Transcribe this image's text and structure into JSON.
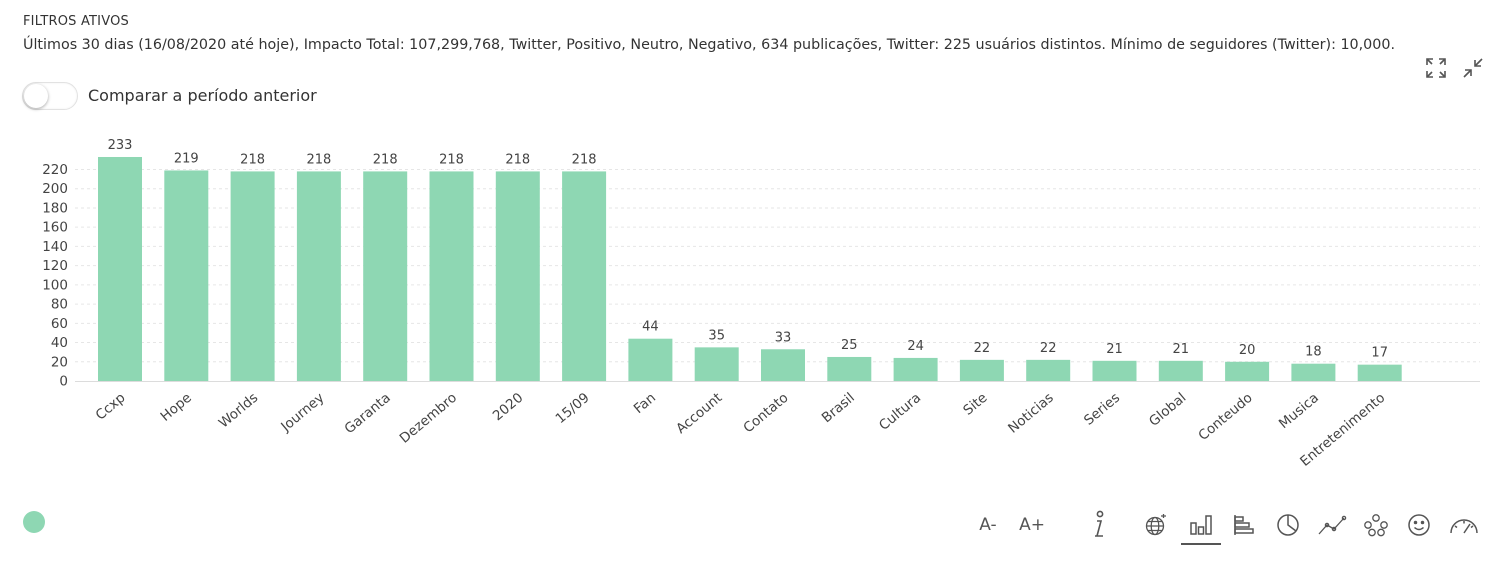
{
  "filters": {
    "title": "FILTROS ATIVOS",
    "summary": "Últimos 30 dias (16/08/2020 até hoje), Impacto Total: 107,299,768, Twitter, Positivo, Neutro, Negativo, 634 publicações, Twitter: 225 usuários distintos. Mínimo de seguidores (Twitter): 10,000."
  },
  "compare": {
    "label": "Comparar a período anterior",
    "enabled": false
  },
  "toolbar": {
    "font_decrease": "A-",
    "font_increase": "A+"
  },
  "colors": {
    "bar": "#8ed7b3",
    "grid": "#e6e6e6",
    "text": "#444444"
  },
  "icons": {
    "expand": "expand-icon",
    "collapse": "collapse-icon",
    "info": "info-icon",
    "globe": "globe-chart-icon",
    "bar": "bar-chart-icon",
    "hbar": "horizontal-bar-chart-icon",
    "pie": "pie-chart-icon",
    "line": "line-chart-icon",
    "network": "network-icon",
    "smiley": "sentiment-icon",
    "gauge": "gauge-icon"
  },
  "chart_data": {
    "type": "bar",
    "categories": [
      "Ccxp",
      "Hope",
      "Worlds",
      "Journey",
      "Garanta",
      "Dezembro",
      "2020",
      "15/09",
      "Fan",
      "Account",
      "Contato",
      "Brasil",
      "Cultura",
      "Site",
      "Noticias",
      "Series",
      "Global",
      "Conteudo",
      "Musica",
      "Entretenimento"
    ],
    "values": [
      233,
      219,
      218,
      218,
      218,
      218,
      218,
      218,
      44,
      35,
      33,
      25,
      24,
      22,
      22,
      21,
      21,
      20,
      18,
      17
    ],
    "ylim": [
      0,
      233
    ],
    "yticks": [
      0,
      20,
      40,
      60,
      80,
      100,
      120,
      140,
      160,
      180,
      200,
      220
    ],
    "grid": true,
    "data_labels": true
  }
}
